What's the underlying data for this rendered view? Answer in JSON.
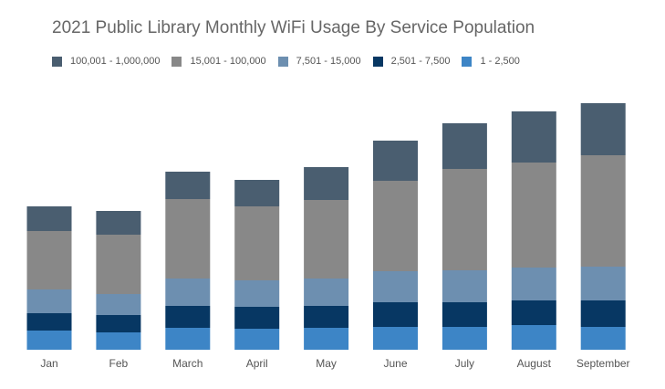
{
  "chart_data": {
    "type": "bar",
    "stacked": true,
    "title": "2021 Public Library Monthly WiFi Usage By Service Population",
    "xlabel": "",
    "ylabel": "",
    "categories": [
      "Jan",
      "Feb",
      "March",
      "April",
      "May",
      "June",
      "July",
      "August",
      "September"
    ],
    "series": [
      {
        "name": "1 - 2,500",
        "color": "#3d85c6",
        "values": [
          21,
          19,
          24,
          23,
          24,
          25,
          25,
          27,
          25
        ]
      },
      {
        "name": "2,501 - 7,500",
        "color": "#073763",
        "values": [
          19,
          19,
          24,
          24,
          24,
          27,
          27,
          27,
          29
        ]
      },
      {
        "name": "7,501 - 15,000",
        "color": "#6d8fb0",
        "values": [
          26,
          23,
          30,
          29,
          30,
          34,
          35,
          36,
          37
        ]
      },
      {
        "name": "15,001 - 100,000",
        "color": "#888888",
        "values": [
          64,
          65,
          87,
          81,
          86,
          99,
          111,
          115,
          122
        ]
      },
      {
        "name": "100,001 - 1,000,000",
        "color": "#4a5e70",
        "values": [
          27,
          26,
          30,
          29,
          36,
          44,
          50,
          56,
          57
        ]
      }
    ],
    "legend_order": [
      "100,001 - 1,000,000",
      "15,001 - 100,000",
      "7,501 - 15,000",
      "2,501 - 7,500",
      "1 - 2,500"
    ],
    "legend_position": "top-left",
    "grid": false,
    "ylim": [
      0,
      280
    ]
  }
}
